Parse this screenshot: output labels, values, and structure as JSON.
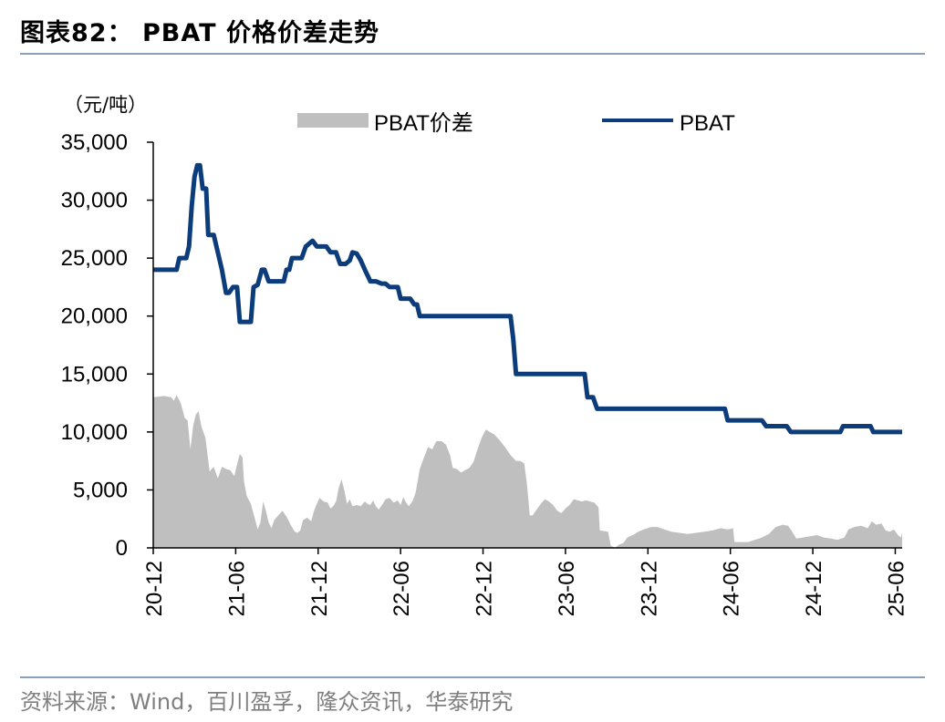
{
  "figure": {
    "title": "图表82： PBAT 价格价差走势",
    "source": "资料来源：Wind，百川盈孚，隆众资讯，华泰研究"
  },
  "chart_data": {
    "type": "line",
    "unit_label": "（元/吨）",
    "yticks": [
      "0",
      "5,000",
      "10,000",
      "15,000",
      "20,000",
      "25,000",
      "30,000",
      "35,000"
    ],
    "ylim": [
      0,
      35000
    ],
    "xlim": [
      0,
      54.5
    ],
    "xticks": [
      {
        "x": 0,
        "label": "20-12"
      },
      {
        "x": 6,
        "label": "21-06"
      },
      {
        "x": 12,
        "label": "21-12"
      },
      {
        "x": 18,
        "label": "22-06"
      },
      {
        "x": 24,
        "label": "22-12"
      },
      {
        "x": 30,
        "label": "23-06"
      },
      {
        "x": 36,
        "label": "23-12"
      },
      {
        "x": 42,
        "label": "24-06"
      },
      {
        "x": 48,
        "label": "24-12"
      },
      {
        "x": 54,
        "label": "25-06"
      }
    ],
    "legend": {
      "placement": "top"
    },
    "colors": {
      "spread": "#bfbfbf",
      "pbat": "#0c3c7a"
    },
    "series": [
      {
        "name": "PBAT价差",
        "type": "area",
        "points": [
          [
            0,
            13000
          ],
          [
            0.8,
            13100
          ],
          [
            1.3,
            13000
          ],
          [
            1.5,
            12700
          ],
          [
            1.7,
            13200
          ],
          [
            2.0,
            12500
          ],
          [
            2.3,
            11200
          ],
          [
            2.5,
            11000
          ],
          [
            2.7,
            8500
          ],
          [
            2.9,
            10500
          ],
          [
            3.1,
            11500
          ],
          [
            3.3,
            11800
          ],
          [
            3.5,
            10500
          ],
          [
            3.8,
            9500
          ],
          [
            4.1,
            6600
          ],
          [
            4.4,
            7000
          ],
          [
            4.7,
            6000
          ],
          [
            5.0,
            7000
          ],
          [
            5.3,
            6800
          ],
          [
            5.6,
            6700
          ],
          [
            5.9,
            6200
          ],
          [
            6.1,
            7200
          ],
          [
            6.3,
            8100
          ],
          [
            6.5,
            7800
          ],
          [
            6.6,
            5800
          ],
          [
            6.8,
            4500
          ],
          [
            7.1,
            3800
          ],
          [
            7.4,
            2500
          ],
          [
            7.6,
            1600
          ],
          [
            7.8,
            2200
          ],
          [
            8.0,
            4000
          ],
          [
            8.2,
            3200
          ],
          [
            8.4,
            2200
          ],
          [
            8.6,
            1700
          ],
          [
            8.8,
            2400
          ],
          [
            9.1,
            2800
          ],
          [
            9.4,
            3200
          ],
          [
            9.7,
            2700
          ],
          [
            10.0,
            2000
          ],
          [
            10.3,
            1400
          ],
          [
            10.5,
            1300
          ],
          [
            10.7,
            1500
          ],
          [
            10.9,
            2400
          ],
          [
            11.2,
            2600
          ],
          [
            11.5,
            2300
          ],
          [
            11.7,
            3200
          ],
          [
            11.9,
            3800
          ],
          [
            12.1,
            4300
          ],
          [
            12.4,
            4000
          ],
          [
            12.7,
            3900
          ],
          [
            12.9,
            3400
          ],
          [
            13.1,
            3600
          ],
          [
            13.3,
            4000
          ],
          [
            13.5,
            5200
          ],
          [
            13.7,
            5900
          ],
          [
            13.9,
            5000
          ],
          [
            14.1,
            3800
          ],
          [
            14.3,
            4200
          ],
          [
            14.5,
            3600
          ],
          [
            14.8,
            3700
          ],
          [
            15.1,
            3600
          ],
          [
            15.4,
            4000
          ],
          [
            15.6,
            3800
          ],
          [
            15.8,
            3700
          ],
          [
            16.0,
            4100
          ],
          [
            16.2,
            3600
          ],
          [
            16.4,
            3300
          ],
          [
            16.7,
            3800
          ],
          [
            16.9,
            4200
          ],
          [
            17.2,
            4300
          ],
          [
            17.5,
            3900
          ],
          [
            17.8,
            4100
          ],
          [
            18.0,
            3700
          ],
          [
            18.2,
            4400
          ],
          [
            18.4,
            3900
          ],
          [
            18.6,
            3600
          ],
          [
            18.9,
            4100
          ],
          [
            19.1,
            4800
          ],
          [
            19.4,
            6800
          ],
          [
            19.7,
            7800
          ],
          [
            20.0,
            8700
          ],
          [
            20.3,
            8500
          ],
          [
            20.6,
            9200
          ],
          [
            21.0,
            9200
          ],
          [
            21.3,
            8900
          ],
          [
            21.6,
            8000
          ],
          [
            21.8,
            6900
          ],
          [
            22.1,
            6800
          ],
          [
            22.4,
            6500
          ],
          [
            22.7,
            6700
          ],
          [
            23.0,
            6900
          ],
          [
            23.3,
            7400
          ],
          [
            23.6,
            8500
          ],
          [
            23.9,
            9500
          ],
          [
            24.2,
            10200
          ],
          [
            24.5,
            10000
          ],
          [
            24.8,
            9800
          ],
          [
            25.2,
            9300
          ],
          [
            25.6,
            8700
          ],
          [
            26.0,
            8000
          ],
          [
            26.4,
            7500
          ],
          [
            26.7,
            7500
          ],
          [
            27.0,
            7300
          ],
          [
            27.2,
            5500
          ],
          [
            27.4,
            2800
          ],
          [
            27.6,
            2800
          ],
          [
            27.9,
            3300
          ],
          [
            28.2,
            3800
          ],
          [
            28.5,
            4200
          ],
          [
            28.8,
            4000
          ],
          [
            29.1,
            3700
          ],
          [
            29.4,
            3200
          ],
          [
            29.7,
            3000
          ],
          [
            30.0,
            3400
          ],
          [
            30.3,
            3700
          ],
          [
            30.6,
            4200
          ],
          [
            30.9,
            4100
          ],
          [
            31.2,
            4000
          ],
          [
            31.5,
            4100
          ],
          [
            31.8,
            4000
          ],
          [
            32.1,
            3900
          ],
          [
            32.4,
            3500
          ],
          [
            32.5,
            1500
          ],
          [
            33.1,
            1400
          ],
          [
            33.3,
            200
          ],
          [
            33.6,
            0
          ],
          [
            33.9,
            300
          ],
          [
            34.2,
            400
          ],
          [
            34.5,
            900
          ],
          [
            34.9,
            1100
          ],
          [
            35.3,
            1400
          ],
          [
            35.7,
            1600
          ],
          [
            36.2,
            1800
          ],
          [
            36.7,
            1800
          ],
          [
            37.2,
            1600
          ],
          [
            37.7,
            1400
          ],
          [
            38.3,
            1300
          ],
          [
            38.9,
            1200
          ],
          [
            39.5,
            1300
          ],
          [
            40.1,
            1400
          ],
          [
            40.7,
            1500
          ],
          [
            41.3,
            1700
          ],
          [
            41.8,
            1600
          ],
          [
            42.2,
            1700
          ],
          [
            42.3,
            500
          ],
          [
            43.3,
            500
          ],
          [
            43.8,
            700
          ],
          [
            44.3,
            900
          ],
          [
            44.8,
            1200
          ],
          [
            45.3,
            1800
          ],
          [
            45.8,
            2000
          ],
          [
            46.2,
            1900
          ],
          [
            46.5,
            1400
          ],
          [
            46.8,
            800
          ],
          [
            47.3,
            900
          ],
          [
            47.8,
            1000
          ],
          [
            48.3,
            1100
          ],
          [
            48.8,
            900
          ],
          [
            49.3,
            800
          ],
          [
            49.8,
            700
          ],
          [
            50.3,
            900
          ],
          [
            50.6,
            1600
          ],
          [
            51.0,
            1800
          ],
          [
            51.5,
            1900
          ],
          [
            52.0,
            1700
          ],
          [
            52.3,
            2300
          ],
          [
            52.6,
            2000
          ],
          [
            53.0,
            2100
          ],
          [
            53.3,
            1500
          ],
          [
            53.6,
            1400
          ],
          [
            53.9,
            1600
          ],
          [
            54.2,
            1100
          ],
          [
            54.4,
            900
          ],
          [
            54.5,
            1300
          ]
        ]
      },
      {
        "name": "PBAT",
        "type": "line",
        "points": [
          [
            0,
            24000
          ],
          [
            1.7,
            24000
          ],
          [
            1.9,
            25000
          ],
          [
            2.4,
            25000
          ],
          [
            2.6,
            26000
          ],
          [
            2.8,
            29500
          ],
          [
            3.0,
            32000
          ],
          [
            3.2,
            33000
          ],
          [
            3.4,
            33000
          ],
          [
            3.6,
            31000
          ],
          [
            3.85,
            31000
          ],
          [
            4.0,
            27000
          ],
          [
            4.4,
            27000
          ],
          [
            4.7,
            25500
          ],
          [
            5.0,
            24000
          ],
          [
            5.3,
            22000
          ],
          [
            5.5,
            22000
          ],
          [
            5.8,
            22500
          ],
          [
            6.1,
            22500
          ],
          [
            6.3,
            19500
          ],
          [
            7.1,
            19500
          ],
          [
            7.3,
            22500
          ],
          [
            7.6,
            22700
          ],
          [
            7.9,
            24000
          ],
          [
            8.1,
            24000
          ],
          [
            8.4,
            23000
          ],
          [
            9.5,
            23000
          ],
          [
            9.7,
            24000
          ],
          [
            9.9,
            24000
          ],
          [
            10.1,
            25000
          ],
          [
            10.8,
            25000
          ],
          [
            11.1,
            26000
          ],
          [
            11.6,
            26500
          ],
          [
            11.9,
            26000
          ],
          [
            12.6,
            26000
          ],
          [
            12.9,
            25500
          ],
          [
            13.3,
            25500
          ],
          [
            13.6,
            24500
          ],
          [
            14.0,
            24500
          ],
          [
            14.3,
            24800
          ],
          [
            14.5,
            25500
          ],
          [
            14.8,
            25400
          ],
          [
            15.1,
            24800
          ],
          [
            15.4,
            24000
          ],
          [
            15.8,
            23000
          ],
          [
            16.2,
            23000
          ],
          [
            16.6,
            22800
          ],
          [
            16.9,
            22800
          ],
          [
            17.2,
            22500
          ],
          [
            17.8,
            22500
          ],
          [
            18.0,
            21500
          ],
          [
            18.7,
            21500
          ],
          [
            19.0,
            21000
          ],
          [
            19.2,
            21000
          ],
          [
            19.4,
            20000
          ],
          [
            26.0,
            20000
          ],
          [
            26.2,
            18000
          ],
          [
            26.4,
            15000
          ],
          [
            31.4,
            15000
          ],
          [
            31.6,
            13000
          ],
          [
            32.0,
            13000
          ],
          [
            32.3,
            12000
          ],
          [
            41.6,
            12000
          ],
          [
            41.8,
            11000
          ],
          [
            44.3,
            11000
          ],
          [
            44.6,
            10500
          ],
          [
            46.1,
            10500
          ],
          [
            46.4,
            10000
          ],
          [
            50.0,
            10000
          ],
          [
            50.2,
            10500
          ],
          [
            52.2,
            10500
          ],
          [
            52.4,
            10000
          ],
          [
            54.5,
            10000
          ]
        ]
      }
    ]
  }
}
